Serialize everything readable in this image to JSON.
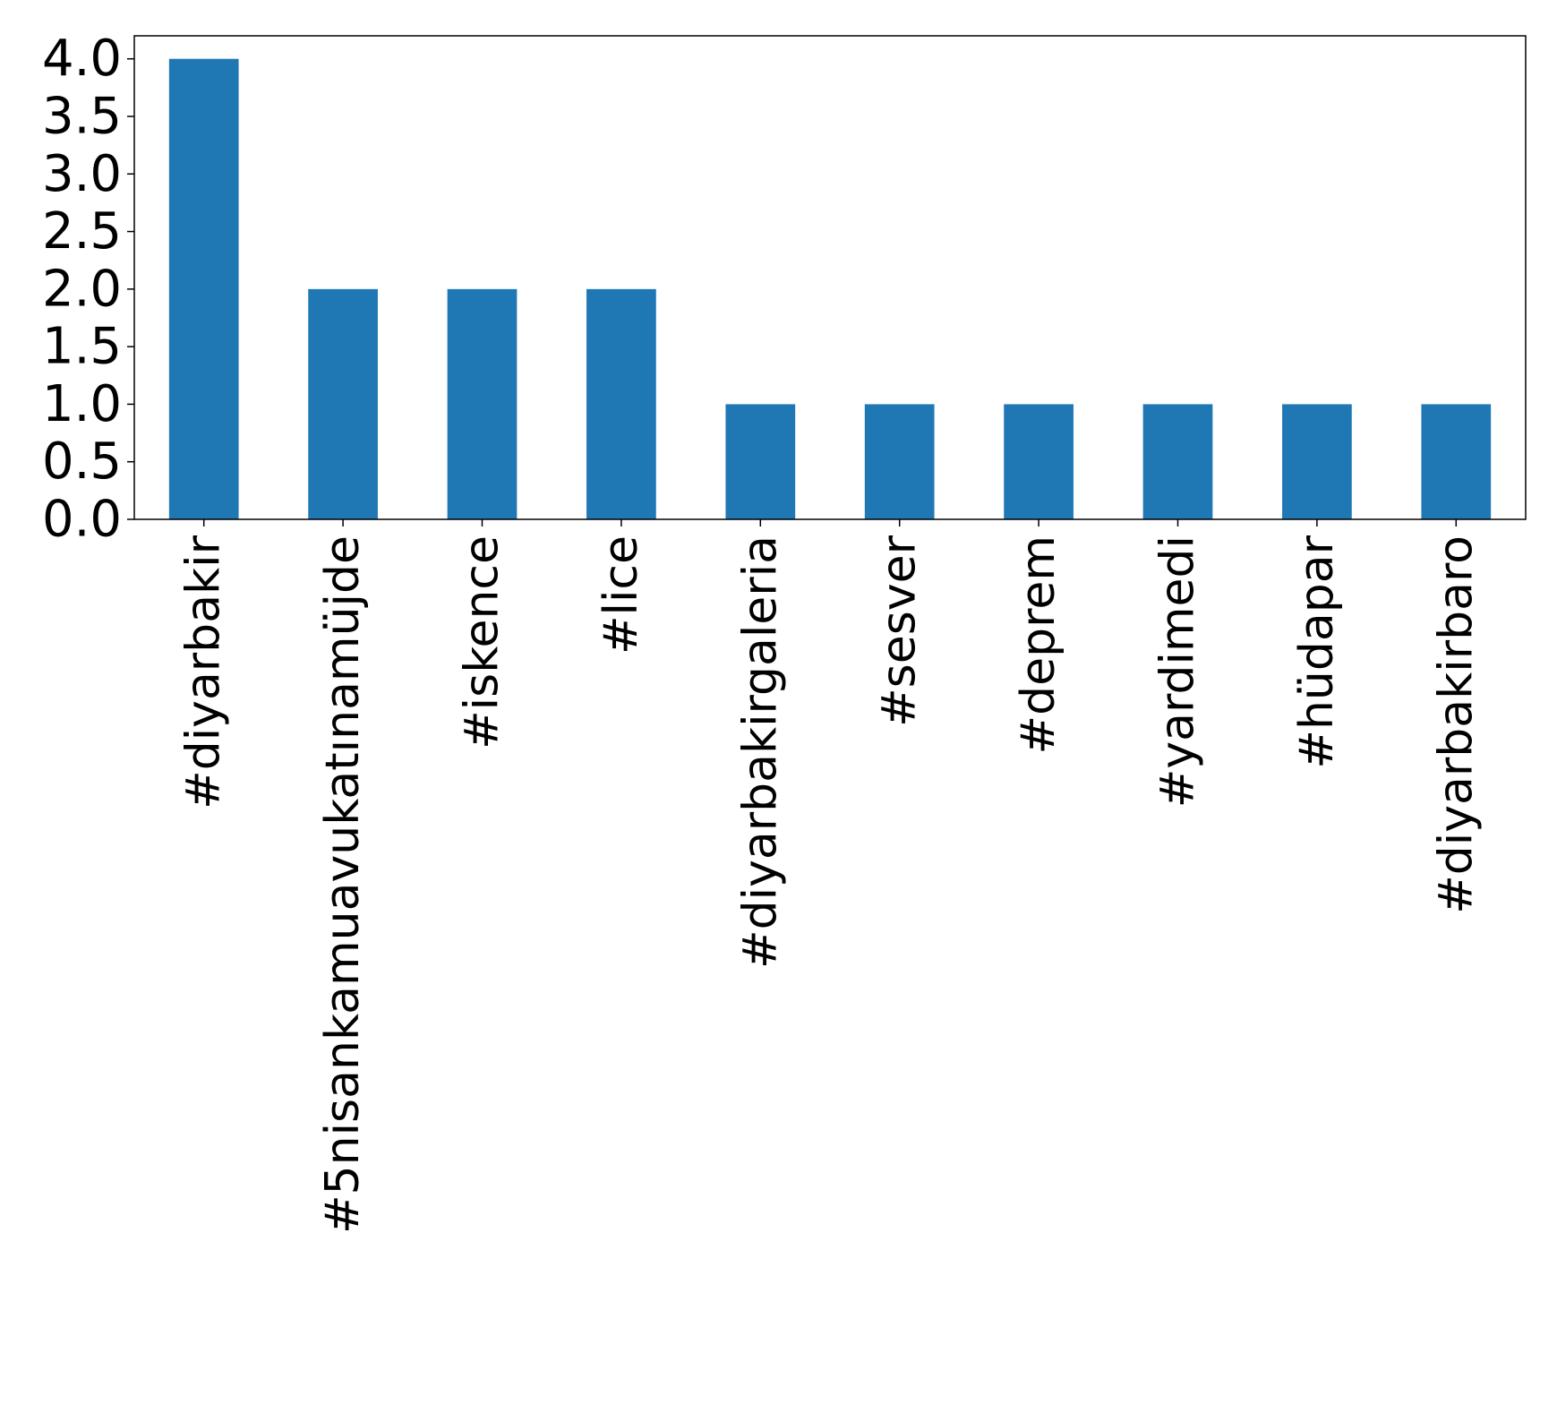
{
  "chart_data": {
    "type": "bar",
    "title": "",
    "xlabel": "",
    "ylabel": "",
    "categories": [
      "#diyarbakir",
      "#5nisankamuavukatınamüjde",
      "#iskence",
      "#lice",
      "#diyarbakirgaleria",
      "#sesver",
      "#deprem",
      "#yardimedi",
      "#hüdapar",
      "#diyarbakirbaro"
    ],
    "values": [
      4,
      2,
      2,
      2,
      1,
      1,
      1,
      1,
      1,
      1
    ],
    "ylim": [
      0,
      4.2
    ],
    "yticks": [
      "0.0",
      "0.5",
      "1.0",
      "1.5",
      "2.0",
      "2.5",
      "3.0",
      "3.5",
      "4.0"
    ],
    "grid": false,
    "legend": "none",
    "colors": {
      "bar": "#1f77b4",
      "axes": "#000000",
      "background": "#ffffff"
    }
  }
}
